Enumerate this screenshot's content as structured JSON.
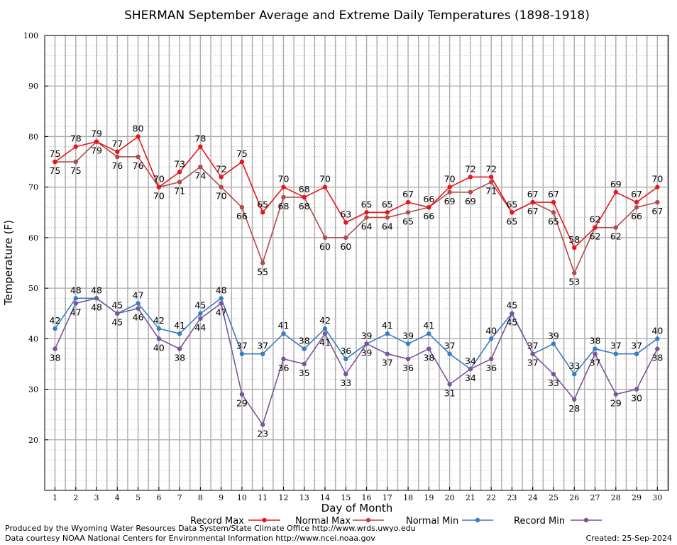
{
  "chart_data": {
    "type": "line",
    "title": "SHERMAN September Average and Extreme Daily Temperatures (1898-1918)",
    "xlabel": "Day of Month",
    "ylabel": "Temperature (F)",
    "ylim": [
      10,
      100
    ],
    "xlim": [
      1,
      30
    ],
    "y_ticks": [
      20,
      30,
      40,
      50,
      60,
      70,
      80,
      90,
      100
    ],
    "grid": true,
    "categories": [
      "1",
      "2",
      "3",
      "4",
      "5",
      "6",
      "7",
      "8",
      "9",
      "10",
      "11",
      "12",
      "13",
      "14",
      "15",
      "16",
      "17",
      "18",
      "19",
      "20",
      "21",
      "22",
      "23",
      "24",
      "25",
      "26",
      "27",
      "28",
      "29",
      "30"
    ],
    "series": [
      {
        "name": "Record Max",
        "color": "#e8161b",
        "values": [
          75,
          78,
          79,
          77,
          80,
          70,
          73,
          78,
          72,
          75,
          65,
          70,
          68,
          70,
          63,
          65,
          65,
          67,
          66,
          70,
          72,
          72,
          65,
          67,
          67,
          58,
          62,
          69,
          67,
          70
        ]
      },
      {
        "name": "Normal Max",
        "color": "#b14a4a",
        "values": [
          75,
          75,
          79,
          76,
          76,
          70,
          71,
          74,
          70,
          66,
          55,
          68,
          68,
          60,
          60,
          64,
          64,
          65,
          66,
          69,
          69,
          71,
          65,
          67,
          65,
          53,
          62,
          62,
          66,
          67
        ]
      },
      {
        "name": "Normal Min",
        "color": "#3b7bbf",
        "values": [
          42,
          48,
          48,
          45,
          47,
          42,
          41,
          45,
          48,
          37,
          37,
          41,
          38,
          42,
          36,
          39,
          41,
          39,
          41,
          37,
          34,
          40,
          45,
          37,
          39,
          33,
          38,
          37,
          37,
          40
        ]
      },
      {
        "name": "Record Min",
        "color": "#7a559a",
        "values": [
          38,
          47,
          48,
          45,
          46,
          40,
          38,
          44,
          47,
          29,
          23,
          36,
          35,
          41,
          33,
          39,
          37,
          36,
          38,
          31,
          34,
          36,
          45,
          37,
          33,
          28,
          37,
          29,
          30,
          38
        ]
      }
    ],
    "legend_position": "bottom"
  },
  "footer": {
    "produced_by": "Produced by the Wyoming Water Resources Data System/State Climate Office http://www.wrds.uwyo.edu",
    "courtesy": "Data courtesy NOAA National Centers for Environmental Information http://www.ncei.noaa.gov",
    "created": "Created:  25-Sep-2024"
  }
}
